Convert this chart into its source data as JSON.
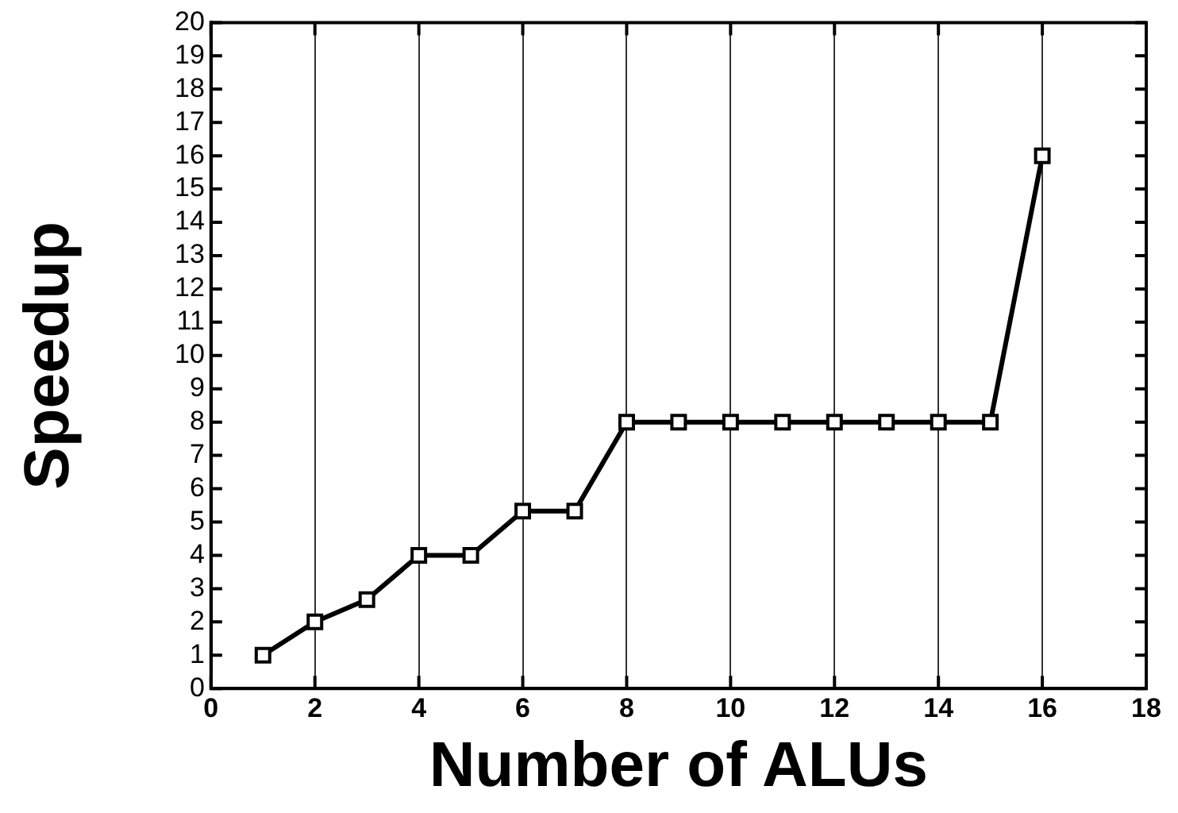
{
  "chart_data": {
    "type": "line",
    "xlabel": "Number of ALUs",
    "ylabel": "Speedup",
    "x": [
      1,
      2,
      3,
      4,
      5,
      6,
      7,
      8,
      9,
      10,
      11,
      12,
      13,
      14,
      15,
      16
    ],
    "series": [
      {
        "color": "#000000",
        "values": [
          1,
          2,
          2.67,
          4,
          4,
          5.33,
          5.33,
          8,
          8,
          8,
          8,
          8,
          8,
          8,
          8,
          16
        ]
      }
    ],
    "xlim": [
      0,
      18
    ],
    "xticks": [
      0,
      2,
      4,
      6,
      8,
      10,
      12,
      14,
      16,
      18
    ],
    "ylim": [
      0,
      20
    ],
    "yticks": [
      0,
      1,
      2,
      3,
      4,
      5,
      6,
      7,
      8,
      9,
      10,
      11,
      12,
      13,
      14,
      15,
      16,
      17,
      18,
      19,
      20
    ],
    "grid": "x",
    "legend": false,
    "marker": "square",
    "line_style": "solid"
  }
}
